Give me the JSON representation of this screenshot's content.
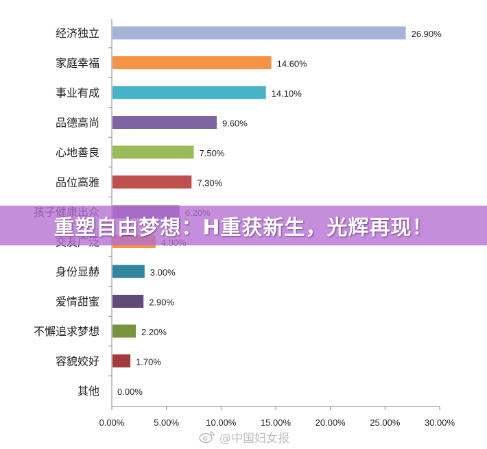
{
  "chart_data": {
    "type": "bar",
    "orientation": "horizontal",
    "categories": [
      "经济独立",
      "家庭幸福",
      "事业有成",
      "品德高尚",
      "心地善良",
      "品位高雅",
      "孩子健康出众",
      "交友广泛",
      "身份显赫",
      "爱情甜蜜",
      "不懈追求梦想",
      "容貌姣好",
      "其他"
    ],
    "values": [
      26.9,
      14.6,
      14.1,
      9.6,
      7.5,
      7.3,
      6.2,
      4.0,
      3.0,
      2.9,
      2.2,
      1.7,
      0.0
    ],
    "value_labels": [
      "26.90%",
      "14.60%",
      "14.10%",
      "9.60%",
      "7.50%",
      "7.30%",
      "6.20%",
      "4.00%",
      "3.00%",
      "2.90%",
      "2.20%",
      "1.70%",
      "0.00%"
    ],
    "colors": [
      "#A5B4D6",
      "#F59444",
      "#47B3C8",
      "#7E64A3",
      "#9BBB59",
      "#C0504D",
      "#7E64A3",
      "#F59444",
      "#31859C",
      "#604A7B",
      "#77933C",
      "#A23B3B",
      "#FFFFFF"
    ],
    "xlim": [
      0,
      30
    ],
    "xticks": [
      "0.00%",
      "5.00%",
      "10.00%",
      "15.00%",
      "20.00%",
      "25.00%",
      "30.00%"
    ],
    "grid": false
  },
  "banner": {
    "text": "重塑自由梦想：H重获新生，光辉再现！"
  },
  "watermark": {
    "text": "@中国妇女报",
    "icon": "weibo-icon"
  }
}
